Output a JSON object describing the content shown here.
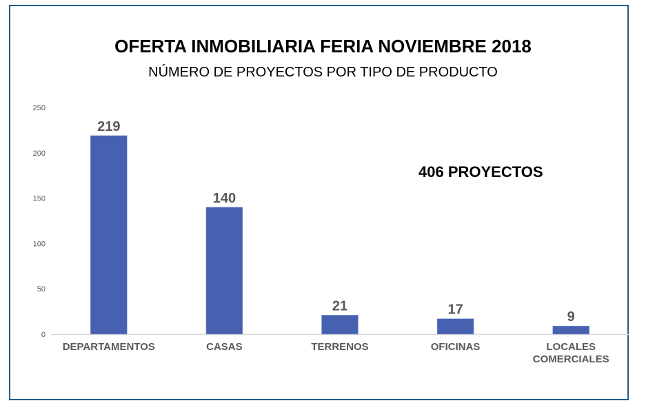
{
  "chart_data": {
    "type": "bar",
    "title": "OFERTA INMOBILIARIA FERIA NOVIEMBRE 2018",
    "subtitle": "NÚMERO DE PROYECTOS POR TIPO DE PRODUCTO",
    "annotation": "406 PROYECTOS",
    "categories": [
      "DEPARTAMENTOS",
      "CASAS",
      "TERRENOS",
      "OFICINAS",
      "LOCALES COMERCIALES"
    ],
    "category_lines": [
      [
        "DEPARTAMENTOS"
      ],
      [
        "CASAS"
      ],
      [
        "TERRENOS"
      ],
      [
        "OFICINAS"
      ],
      [
        "LOCALES",
        "COMERCIALES"
      ]
    ],
    "values": [
      219,
      140,
      21,
      17,
      9
    ],
    "data_labels": [
      "219",
      "140",
      "21",
      "17",
      "9"
    ],
    "xlabel": "",
    "ylabel": "",
    "ylim": [
      0,
      250
    ],
    "yticks": [
      0,
      50,
      100,
      150,
      200,
      250
    ],
    "grid": false,
    "legend": "none",
    "colors": {
      "bar": "#4661b0",
      "frame": "#1f5c8a",
      "label": "#595959",
      "axis": "#d9d9d9"
    }
  }
}
